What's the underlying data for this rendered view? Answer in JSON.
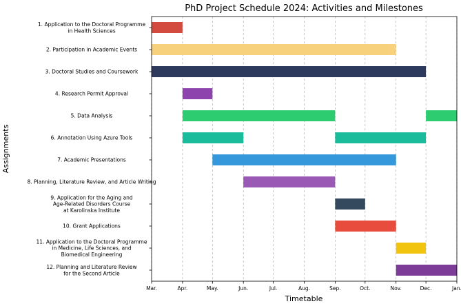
{
  "chart_data": {
    "type": "gantt",
    "title": "PhD Project Schedule 2024: Activities and Milestones",
    "xlabel": "Timetable",
    "ylabel": "Assignments",
    "x_ticks": [
      "Mar.",
      "Apr.",
      "May.",
      "Jun.",
      "Jul.",
      "Aug.",
      "Sep.",
      "Oct.",
      "Nov.",
      "Dec.",
      "Jan."
    ],
    "xlim": [
      "2024-03-01",
      "2025-01-01"
    ],
    "grid": "vertical dashed",
    "tasks": [
      {
        "label": "1. Application to the Doctoral Programme\nin Health Sciences",
        "color": "#d24b3e",
        "segments": [
          [
            "2024-03-01",
            "2024-04-01"
          ]
        ]
      },
      {
        "label": "2. Participation in Academic Events",
        "color": "#f7d17c",
        "segments": [
          [
            "2024-03-01",
            "2024-11-01"
          ]
        ]
      },
      {
        "label": "3. Doctoral Studies and Coursework",
        "color": "#2d3a5e",
        "segments": [
          [
            "2024-03-01",
            "2024-12-01"
          ]
        ]
      },
      {
        "label": "4. Research Permit Approval",
        "color": "#8e44ad",
        "segments": [
          [
            "2024-04-01",
            "2024-05-01"
          ]
        ]
      },
      {
        "label": "5. Data Analysis",
        "color": "#2ecc71",
        "segments": [
          [
            "2024-04-01",
            "2024-09-01"
          ],
          [
            "2024-12-01",
            "2025-01-01"
          ]
        ]
      },
      {
        "label": "6. Annotation Using Azure Tools",
        "color": "#1abc9c",
        "segments": [
          [
            "2024-04-01",
            "2024-06-01"
          ],
          [
            "2024-09-01",
            "2024-12-01"
          ]
        ]
      },
      {
        "label": "7. Academic Presentations",
        "color": "#3498db",
        "segments": [
          [
            "2024-05-01",
            "2024-11-01"
          ]
        ]
      },
      {
        "label": "8. Planning, Literature Review, and Article Writing",
        "color": "#9b59b6",
        "segments": [
          [
            "2024-06-01",
            "2024-09-01"
          ]
        ]
      },
      {
        "label": "9. Application for the Aging and\nAge-Related Disorders Course\nat Karolinska Institute",
        "color": "#34495e",
        "segments": [
          [
            "2024-09-01",
            "2024-10-01"
          ]
        ]
      },
      {
        "label": "10. Grant Applications",
        "color": "#e74c3c",
        "segments": [
          [
            "2024-09-01",
            "2024-11-01"
          ]
        ]
      },
      {
        "label": "11. Application to the Doctoral Programme\nin Medicine, Life Sciences, and\nBiomedical Engineering",
        "color": "#f1c40f",
        "segments": [
          [
            "2024-11-01",
            "2024-12-01"
          ]
        ]
      },
      {
        "label": "12. Planning and Literature Review\nfor the Second Article",
        "color": "#7d3c98",
        "segments": [
          [
            "2024-11-01",
            "2025-01-01"
          ]
        ]
      }
    ]
  }
}
